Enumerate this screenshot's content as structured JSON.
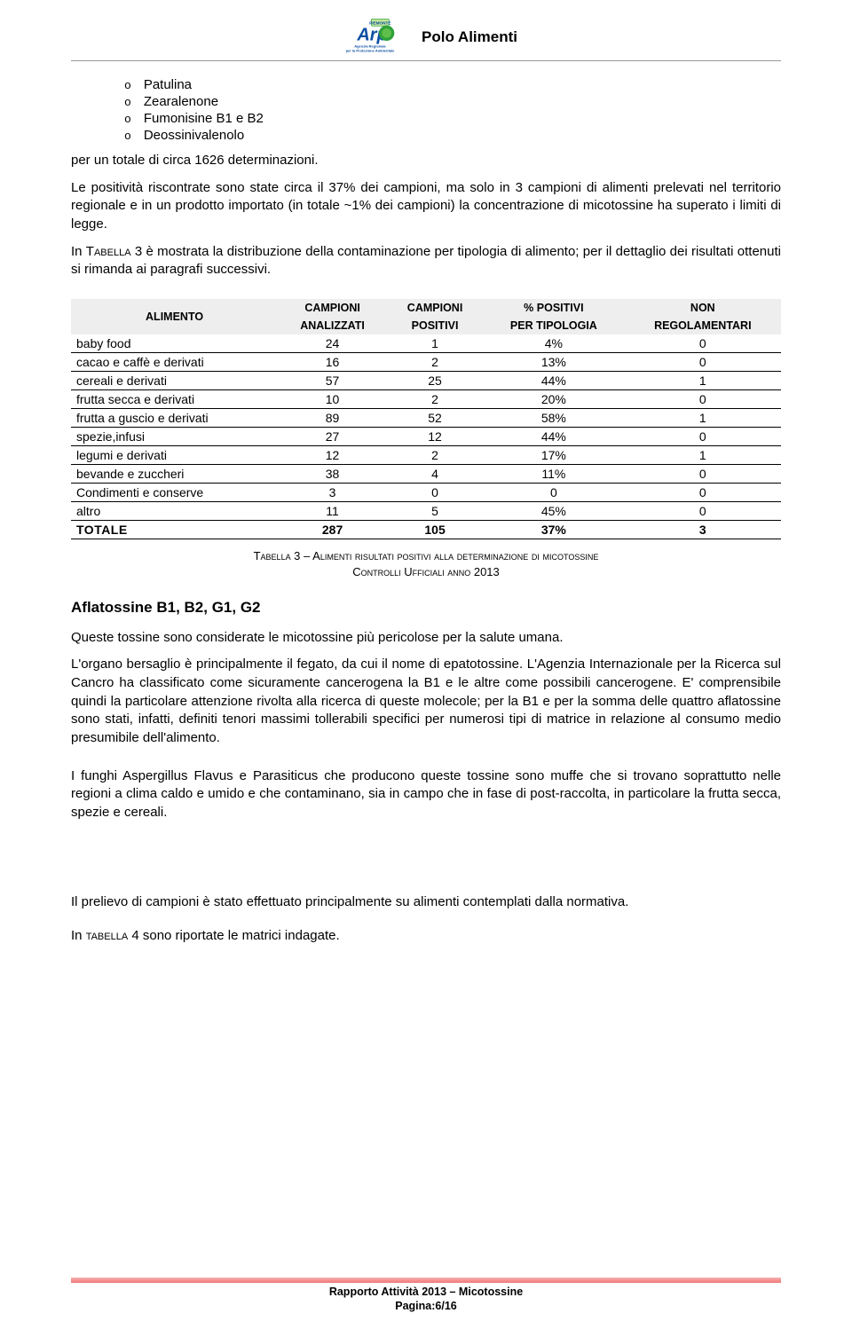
{
  "header": {
    "title": "Polo Alimenti",
    "logo_colors": {
      "text": "#0b4ea2",
      "accent": "#2fa13a",
      "subtitle": "#0b4ea2"
    },
    "logo_text": "Arpa",
    "logo_sub1": "Agenzia Regionale",
    "logo_sub2": "per la Protezione Ambientale"
  },
  "bullet_items": [
    {
      "marker": "o",
      "text": "Patulina"
    },
    {
      "marker": "o",
      "text": "Zearalenone"
    },
    {
      "marker": "o",
      "text": "Fumonisine B1 e B2"
    },
    {
      "marker": "o",
      "text": "Deossinivalenolo"
    }
  ],
  "para1": "per un totale di circa 1626 determinazioni.",
  "para2": "Le positività riscontrate sono state circa il 37% dei campioni, ma solo in 3 campioni di alimenti prelevati nel territorio regionale e in un prodotto importato (in totale ~1% dei campioni) la concentrazione di micotossine ha superato i limiti di legge.",
  "para3a": "In ",
  "para3b": "Tabella",
  "para3c": " 3 è mostrata la distribuzione della contaminazione per tipologia di alimento; per il dettaglio dei risultati ottenuti si rimanda ai paragrafi successivi.",
  "table": {
    "columns": [
      {
        "line1": "ALIMENTO",
        "line2": ""
      },
      {
        "line1": "CAMPIONI",
        "line2": "ANALIZZATI"
      },
      {
        "line1": "CAMPIONI",
        "line2": "POSITIVI"
      },
      {
        "line1": "% POSITIVI",
        "line2": "PER TIPOLOGIA"
      },
      {
        "line1": "NON",
        "line2": "REGOLAMENTARI"
      }
    ],
    "rows": [
      {
        "a": "baby food",
        "b": "24",
        "c": "1",
        "d": "4%",
        "e": "0"
      },
      {
        "a": "cacao e caffè e derivati",
        "b": "16",
        "c": "2",
        "d": "13%",
        "e": "0"
      },
      {
        "a": "cereali e derivati",
        "b": "57",
        "c": "25",
        "d": "44%",
        "e": "1"
      },
      {
        "a": "frutta secca e derivati",
        "b": "10",
        "c": "2",
        "d": "20%",
        "e": "0"
      },
      {
        "a": "frutta a guscio e derivati",
        "b": "89",
        "c": "52",
        "d": "58%",
        "e": "1"
      },
      {
        "a": "spezie,infusi",
        "b": "27",
        "c": "12",
        "d": "44%",
        "e": "0"
      },
      {
        "a": "legumi e derivati",
        "b": "12",
        "c": "2",
        "d": "17%",
        "e": "1"
      },
      {
        "a": "bevande e zuccheri",
        "b": "38",
        "c": "4",
        "d": "11%",
        "e": "0"
      },
      {
        "a": "Condimenti e conserve",
        "b": "3",
        "c": "0",
        "d": "0",
        "e": "0"
      },
      {
        "a": "altro",
        "b": "11",
        "c": "5",
        "d": "45%",
        "e": "0"
      }
    ],
    "total": {
      "a": "TOTALE",
      "b": "287",
      "c": "105",
      "d": "37%",
      "e": "3"
    }
  },
  "caption_line1": "Tabella 3 – Alimenti risultati positivi alla determinazione di micotossine",
  "caption_line2": "Controlli Ufficiali anno 2013",
  "section_heading": "Aflatossine B1, B2, G1, G2",
  "para4": "Queste tossine sono considerate le micotossine più pericolose per la salute umana.",
  "para5": "L'organo bersaglio è principalmente il fegato, da cui il nome di epatotossine. L'Agenzia Internazionale per la Ricerca sul Cancro ha classificato come sicuramente cancerogena la B1 e le altre come possibili cancerogene. E' comprensibile quindi la particolare attenzione rivolta alla ricerca di queste molecole; per la B1 e per la somma delle quattro aflatossine sono stati, infatti, definiti tenori massimi tollerabili specifici per numerosi tipi di matrice in relazione al consumo medio presumibile dell'alimento.",
  "para6": "I funghi Aspergillus Flavus e Parasiticus che producono queste tossine sono muffe che si trovano soprattutto nelle regioni a clima caldo e umido e che contaminano, sia in campo che in fase di post-raccolta, in particolare la frutta secca, spezie e cereali.",
  "para7": "Il prelievo di campioni è stato effettuato principalmente su alimenti contemplati dalla normativa.",
  "para8a": "In ",
  "para8b": "tabella",
  "para8c": " 4 sono riportate le matrici indagate.",
  "footer": {
    "line1": "Rapporto Attività 2013 – Micotossine",
    "line2": "Pagina:6/16"
  }
}
